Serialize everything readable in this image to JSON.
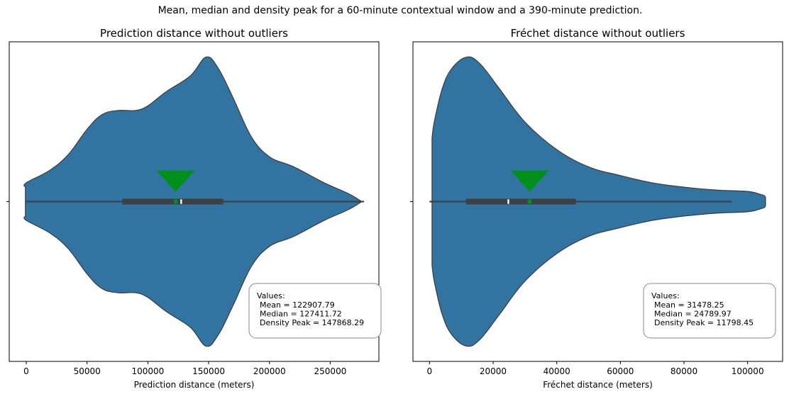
{
  "figure": {
    "suptitle": "Mean, median and density peak for a 60-minute contextual window and a 390-minute prediction."
  },
  "chart_data": [
    {
      "type": "violin",
      "title": "Prediction distance without outliers",
      "xlabel": "Prediction distance (meters)",
      "ylabel": "",
      "xlim": [
        -14000,
        290000
      ],
      "xticks": [
        0,
        50000,
        100000,
        150000,
        200000,
        250000
      ],
      "xtick_labels": [
        "0",
        "50000",
        "100000",
        "150000",
        "200000",
        "250000"
      ],
      "color": "#3274a1",
      "marker_color": "#008f1b",
      "stats": {
        "whisker_low": 0,
        "q1": 79000,
        "median": 127411.72,
        "q3": 162000,
        "whisker_high": 276000,
        "mean": 122907.79,
        "density_peak": 147868.29
      },
      "density_profile": [
        [
          -700,
          0.1
        ],
        [
          0,
          0.13
        ],
        [
          20000,
          0.22
        ],
        [
          35000,
          0.33
        ],
        [
          50000,
          0.5
        ],
        [
          62000,
          0.6
        ],
        [
          75000,
          0.63
        ],
        [
          95000,
          0.64
        ],
        [
          115000,
          0.76
        ],
        [
          135000,
          0.87
        ],
        [
          148000,
          1.0
        ],
        [
          158000,
          0.92
        ],
        [
          170000,
          0.72
        ],
        [
          185000,
          0.45
        ],
        [
          200000,
          0.31
        ],
        [
          220000,
          0.24
        ],
        [
          245000,
          0.13
        ],
        [
          265000,
          0.055
        ],
        [
          276000,
          0.0
        ]
      ],
      "annotation": {
        "heading": "Values:",
        "lines": [
          "Mean = 122907.79",
          "Median = 127411.72",
          "Density Peak = 147868.29"
        ]
      }
    },
    {
      "type": "violin",
      "title": "Fréchet distance without outliers",
      "xlabel": "Fréchet distance (meters)",
      "ylabel": "",
      "xlim": [
        -5200,
        111000
      ],
      "xticks": [
        0,
        20000,
        40000,
        60000,
        80000,
        100000
      ],
      "xtick_labels": [
        "0",
        "20000",
        "40000",
        "60000",
        "80000",
        "100000"
      ],
      "color": "#3274a1",
      "marker_color": "#008f1b",
      "stats": {
        "whisker_low": 0,
        "q1": 11500,
        "median": 24789.97,
        "q3": 46000,
        "whisker_high": 95000,
        "mean": 31478.25,
        "density_peak": 11798.45
      },
      "density_profile": [
        [
          800,
          0.44
        ],
        [
          1500,
          0.55
        ],
        [
          4000,
          0.78
        ],
        [
          7000,
          0.92
        ],
        [
          11798,
          1.0
        ],
        [
          16000,
          0.95
        ],
        [
          22000,
          0.78
        ],
        [
          30000,
          0.55
        ],
        [
          40000,
          0.36
        ],
        [
          50000,
          0.24
        ],
        [
          60000,
          0.18
        ],
        [
          70000,
          0.13
        ],
        [
          80000,
          0.1
        ],
        [
          90000,
          0.08
        ],
        [
          100000,
          0.07
        ],
        [
          104000,
          0.05
        ],
        [
          105500,
          0.035
        ],
        [
          105600,
          0.0
        ]
      ],
      "annotation": {
        "heading": "Values:",
        "lines": [
          "Mean = 31478.25",
          "Median = 24789.97",
          "Density Peak = 11798.45"
        ]
      }
    }
  ]
}
